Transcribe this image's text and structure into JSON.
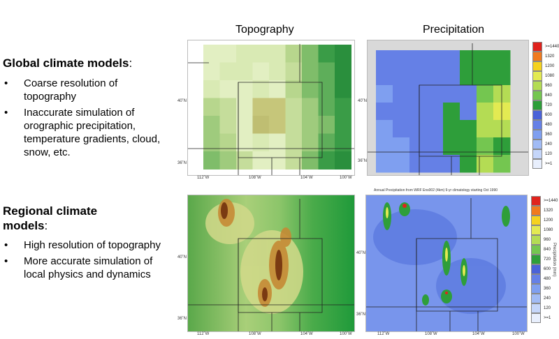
{
  "global": {
    "title": "Global climate models",
    "colon": ":",
    "bullets": [
      "Coarse resolution of topography",
      "Inaccurate simulation of orographic precipitation, temperature gradients, cloud, snow, etc."
    ]
  },
  "regional": {
    "title": "Regional climate models",
    "colon": ":",
    "bullets": [
      "High resolution of topography",
      "More accurate simulation of local physics and dynamics"
    ]
  },
  "columns": {
    "topography": "Topography",
    "precipitation": "Precipitation"
  },
  "wrf_title": "Annual Precipitation from WRF Ens002 (4km)  9-yr climatology starting Oct 1990",
  "lon_ticks": [
    "112˚W",
    "108˚W",
    "104˚W",
    "100˚W"
  ],
  "lat_ticks": [
    "40˚N",
    "36˚N"
  ],
  "colorbar": {
    "labels": [
      ">=1440",
      "1320",
      "1200",
      "1080",
      "960",
      "840",
      "720",
      "600",
      "480",
      "360",
      "240",
      "120",
      ">=1"
    ],
    "colors": [
      "#e0231d",
      "#f07a1e",
      "#f5d21f",
      "#e3ea52",
      "#b4dc54",
      "#74c650",
      "#2e9e3a",
      "#4a62d8",
      "#6580e6",
      "#7f9ff0",
      "#a1bbf5",
      "#c5d6fa",
      "#e8effd"
    ],
    "unit": "Precipitation (mm)"
  }
}
